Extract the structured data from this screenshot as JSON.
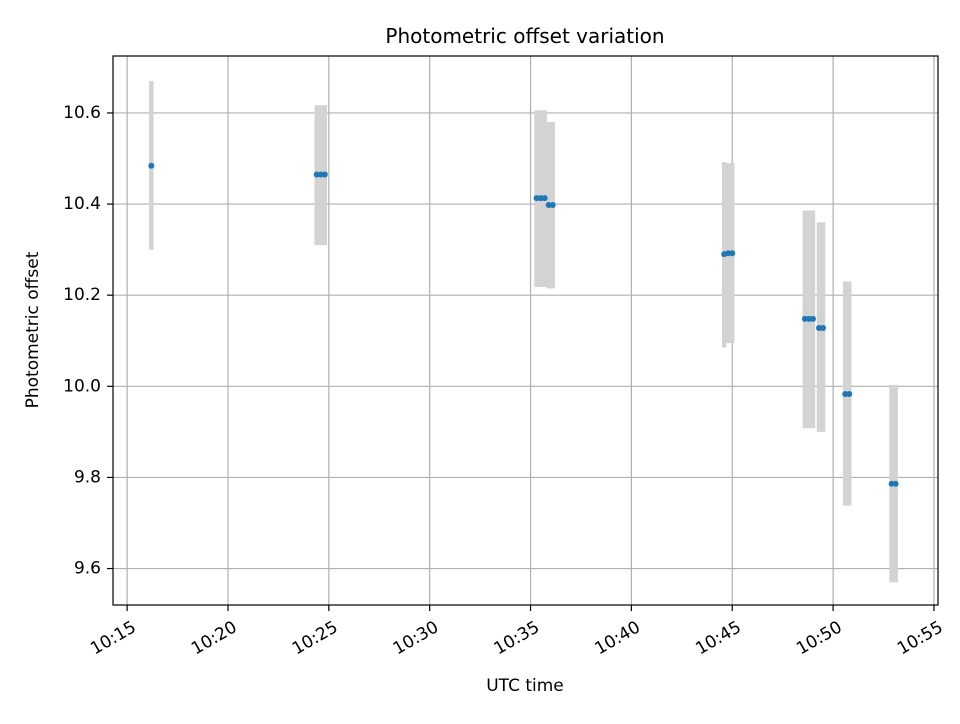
{
  "chart_data": {
    "type": "scatter",
    "title": "Photometric offset variation",
    "xlabel": "UTC time",
    "ylabel": "Photometric offset",
    "xlim": [
      "10:14.3",
      "10:55.2"
    ],
    "ylim": [
      9.52,
      10.725
    ],
    "x_ticks": [
      "10:15",
      "10:20",
      "10:25",
      "10:30",
      "10:35",
      "10:40",
      "10:45",
      "10:50",
      "10:55"
    ],
    "y_ticks": [
      "9.6",
      "9.8",
      "10.0",
      "10.2",
      "10.4",
      "10.6"
    ],
    "grid": true,
    "colors": {
      "point": "#1f77b4",
      "errorbar": "#d3d3d3",
      "grid": "#b0b0b0"
    },
    "series": [
      {
        "points": [
          {
            "x": "10:16.2",
            "y": 10.484,
            "y_low": 10.3,
            "y_high": 10.67
          },
          {
            "x": "10:24.4",
            "y": 10.465,
            "y_low": 10.31,
            "y_high": 10.617
          },
          {
            "x": "10:24.6",
            "y": 10.465,
            "y_low": 10.31,
            "y_high": 10.617
          },
          {
            "x": "10:24.8",
            "y": 10.465,
            "y_low": 10.31,
            "y_high": 10.617
          },
          {
            "x": "10:35.3",
            "y": 10.413,
            "y_low": 10.218,
            "y_high": 10.606
          },
          {
            "x": "10:35.5",
            "y": 10.413,
            "y_low": 10.218,
            "y_high": 10.606
          },
          {
            "x": "10:35.7",
            "y": 10.413,
            "y_low": 10.218,
            "y_high": 10.606
          },
          {
            "x": "10:35.9",
            "y": 10.398,
            "y_low": 10.215,
            "y_high": 10.58
          },
          {
            "x": "10:36.1",
            "y": 10.398,
            "y_low": 10.215,
            "y_high": 10.58
          },
          {
            "x": "10:44.6",
            "y": 10.29,
            "y_low": 10.085,
            "y_high": 10.492
          },
          {
            "x": "10:44.8",
            "y": 10.292,
            "y_low": 10.095,
            "y_high": 10.49
          },
          {
            "x": "10:45.0",
            "y": 10.292,
            "y_low": 10.095,
            "y_high": 10.49
          },
          {
            "x": "10:48.6",
            "y": 10.148,
            "y_low": 9.908,
            "y_high": 10.386
          },
          {
            "x": "10:48.8",
            "y": 10.148,
            "y_low": 9.908,
            "y_high": 10.386
          },
          {
            "x": "10:49.0",
            "y": 10.148,
            "y_low": 9.908,
            "y_high": 10.386
          },
          {
            "x": "10:49.3",
            "y": 10.128,
            "y_low": 9.9,
            "y_high": 10.36
          },
          {
            "x": "10:49.5",
            "y": 10.128,
            "y_low": 9.9,
            "y_high": 10.36
          },
          {
            "x": "10:50.6",
            "y": 9.983,
            "y_low": 9.738,
            "y_high": 10.23
          },
          {
            "x": "10:50.8",
            "y": 9.983,
            "y_low": 9.738,
            "y_high": 10.23
          },
          {
            "x": "10:52.9",
            "y": 9.786,
            "y_low": 9.57,
            "y_high": 10.003
          },
          {
            "x": "10:53.1",
            "y": 9.786,
            "y_low": 9.57,
            "y_high": 10.003
          }
        ]
      }
    ]
  }
}
